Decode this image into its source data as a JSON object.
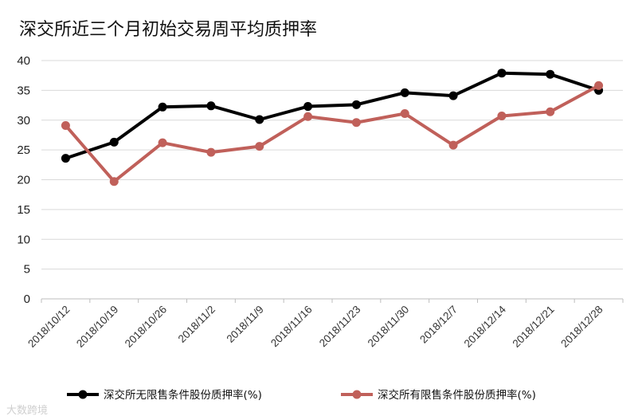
{
  "watermark": "大数跨境",
  "chart_data": {
    "type": "line",
    "title": "深交所近三个月初始交易周平均质押率",
    "xlabel": "",
    "ylabel": "",
    "ylim": [
      0,
      40
    ],
    "yticks": [
      "0",
      "5",
      "10",
      "15",
      "20",
      "25",
      "30",
      "35",
      "40"
    ],
    "grid": true,
    "legend_position": "bottom",
    "categories": [
      "2018/10/12",
      "2018/10/19",
      "2018/10/26",
      "2018/11/2",
      "2018/11/9",
      "2018/11/16",
      "2018/11/23",
      "2018/11/30",
      "2018/12/7",
      "2018/12/14",
      "2018/12/21",
      "2018/12/28"
    ],
    "series": [
      {
        "name": "深交所无限售条件股份质押率(%)",
        "color": "#000000",
        "values": [
          23.6,
          26.3,
          32.2,
          32.4,
          30.1,
          32.3,
          32.6,
          34.6,
          34.1,
          37.9,
          37.7,
          35.0
        ]
      },
      {
        "name": "深交所有限售条件股份质押率(%)",
        "color": "#c0605a",
        "values": [
          29.1,
          19.7,
          26.2,
          24.6,
          25.6,
          30.6,
          29.6,
          31.1,
          25.8,
          30.7,
          31.4,
          35.8
        ]
      }
    ]
  }
}
